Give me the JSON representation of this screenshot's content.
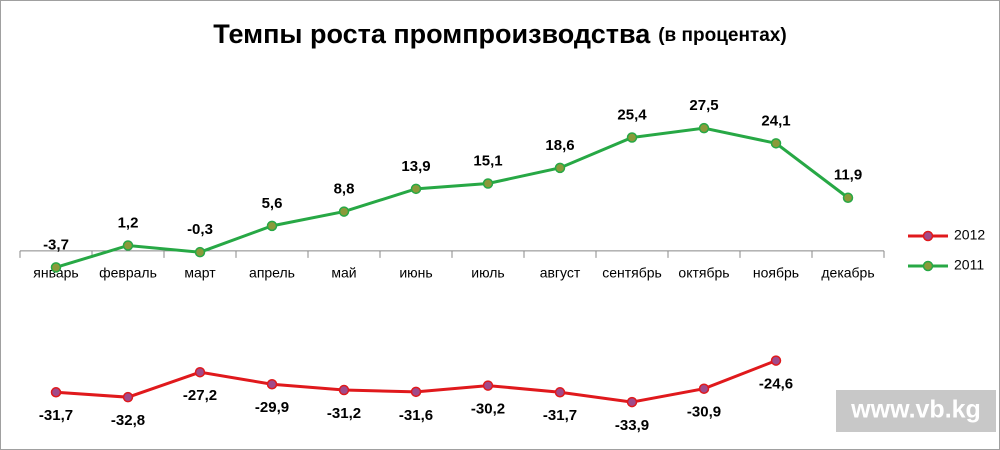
{
  "chart_data": {
    "type": "line",
    "title": "Темпы роста промпроизводства",
    "subtitle": "(в процентах)",
    "annotation": "www.vb.kg",
    "categories": [
      "январь",
      "февраль",
      "март",
      "апрель",
      "май",
      "июнь",
      "июль",
      "август",
      "сентябрь",
      "октябрь",
      "ноябрь",
      "декабрь"
    ],
    "series": [
      {
        "name": "2012",
        "color": "#e0191c",
        "marker_color": "#a04a8a",
        "values": [
          -31.7,
          -32.8,
          -27.2,
          -29.9,
          -31.2,
          -31.6,
          -30.2,
          -31.7,
          -33.9,
          -30.9,
          -24.6,
          null
        ],
        "value_labels": [
          "-31,7",
          "-32,8",
          "-27,2",
          "-29,9",
          "-31,2",
          "-31,6",
          "-30,2",
          "-31,7",
          "-33,9",
          "-30,9",
          "-24,6",
          null
        ]
      },
      {
        "name": "2011",
        "color": "#27a845",
        "marker_color": "#8a9a3a",
        "values": [
          -3.7,
          1.2,
          -0.3,
          5.6,
          8.8,
          13.9,
          15.1,
          18.6,
          25.4,
          27.5,
          24.1,
          11.9
        ],
        "value_labels": [
          "-3,7",
          "1,2",
          "-0,3",
          "5,6",
          "8,8",
          "13,9",
          "15,1",
          "18,6",
          "25,4",
          "27,5",
          "24,1",
          "11,9"
        ]
      }
    ],
    "ylim": [
      -35,
      30
    ],
    "legend": "right"
  }
}
